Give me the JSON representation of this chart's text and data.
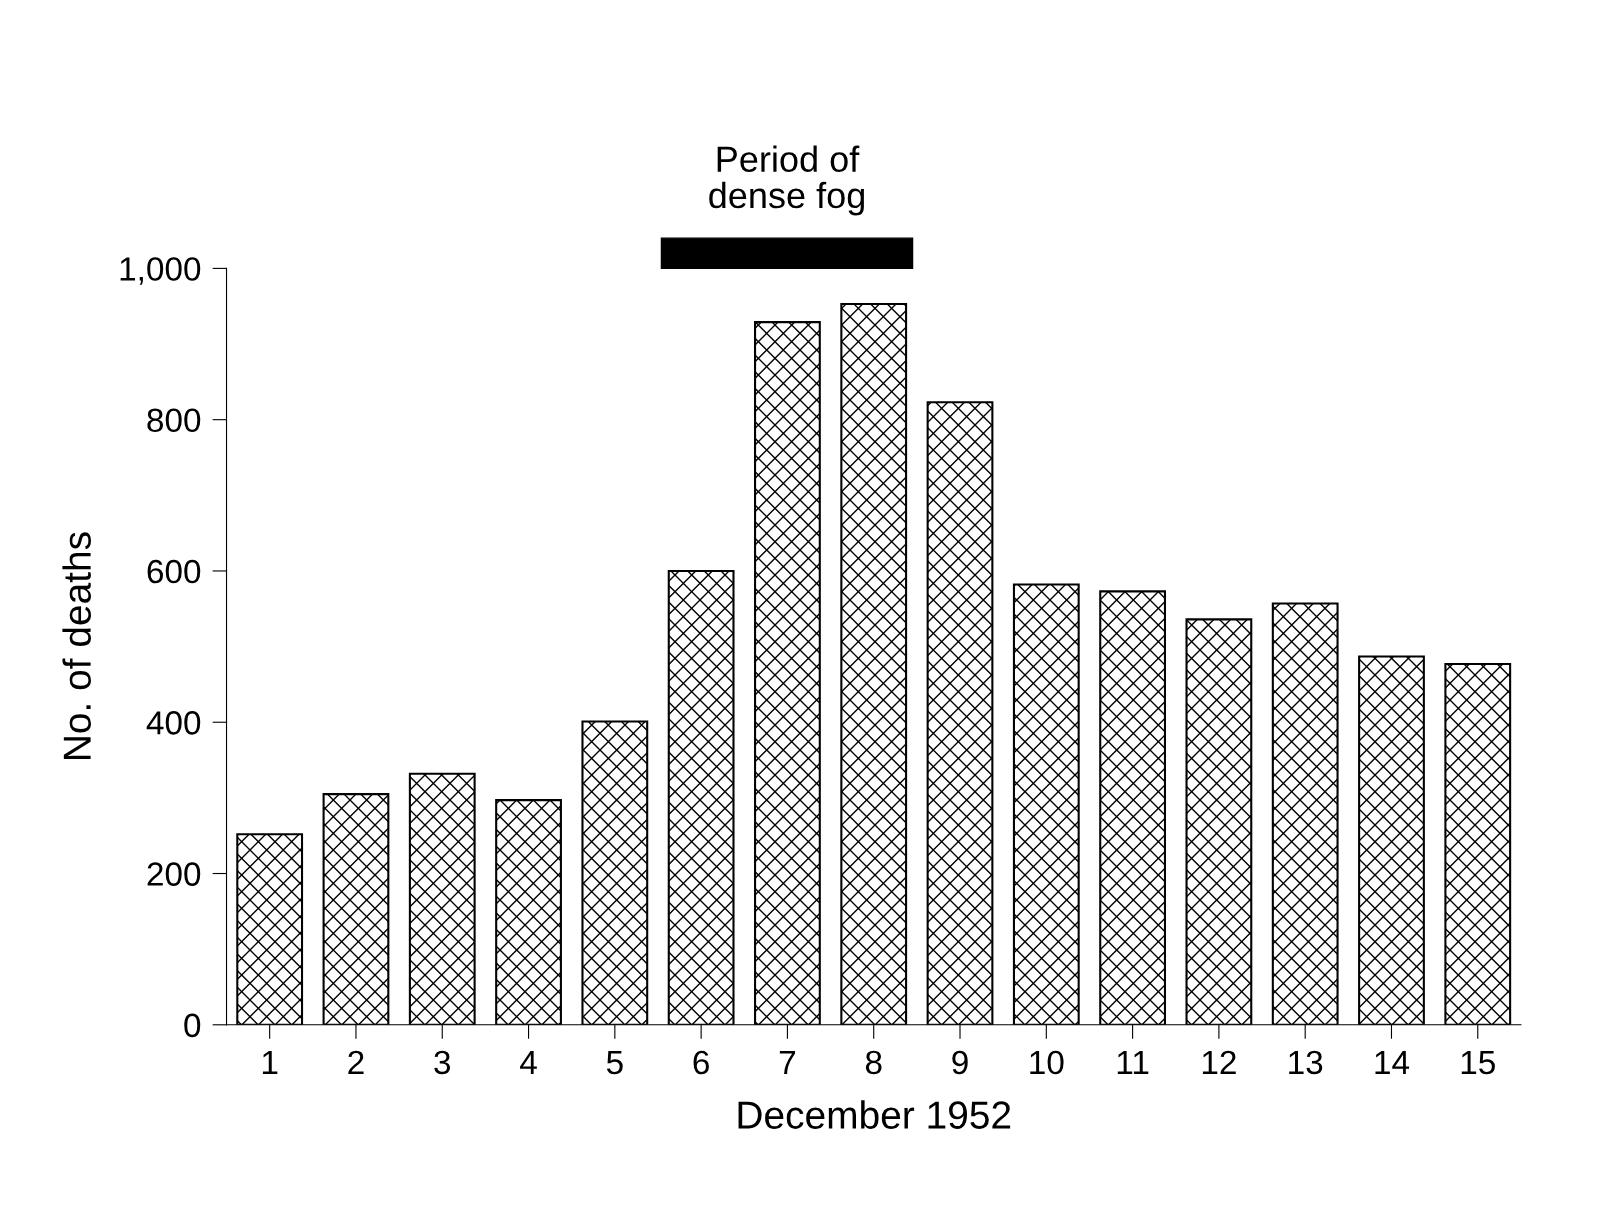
{
  "chart_data": {
    "type": "bar",
    "xlabel": "December 1952",
    "ylabel": "No. of deaths",
    "categories": [
      "1",
      "2",
      "3",
      "4",
      "5",
      "6",
      "7",
      "8",
      "9",
      "10",
      "11",
      "12",
      "13",
      "14",
      "15"
    ],
    "values": [
      252,
      305,
      332,
      297,
      401,
      600,
      929,
      953,
      823,
      582,
      573,
      536,
      557,
      487,
      477
    ],
    "color": "#000000",
    "ylim": [
      0,
      1000
    ],
    "yticks": [
      0,
      200,
      400,
      600,
      800,
      {
        "value": 1000,
        "label": "1,000"
      }
    ],
    "annotations": [
      "Period of\ndense fog"
    ],
    "grid": false
  }
}
